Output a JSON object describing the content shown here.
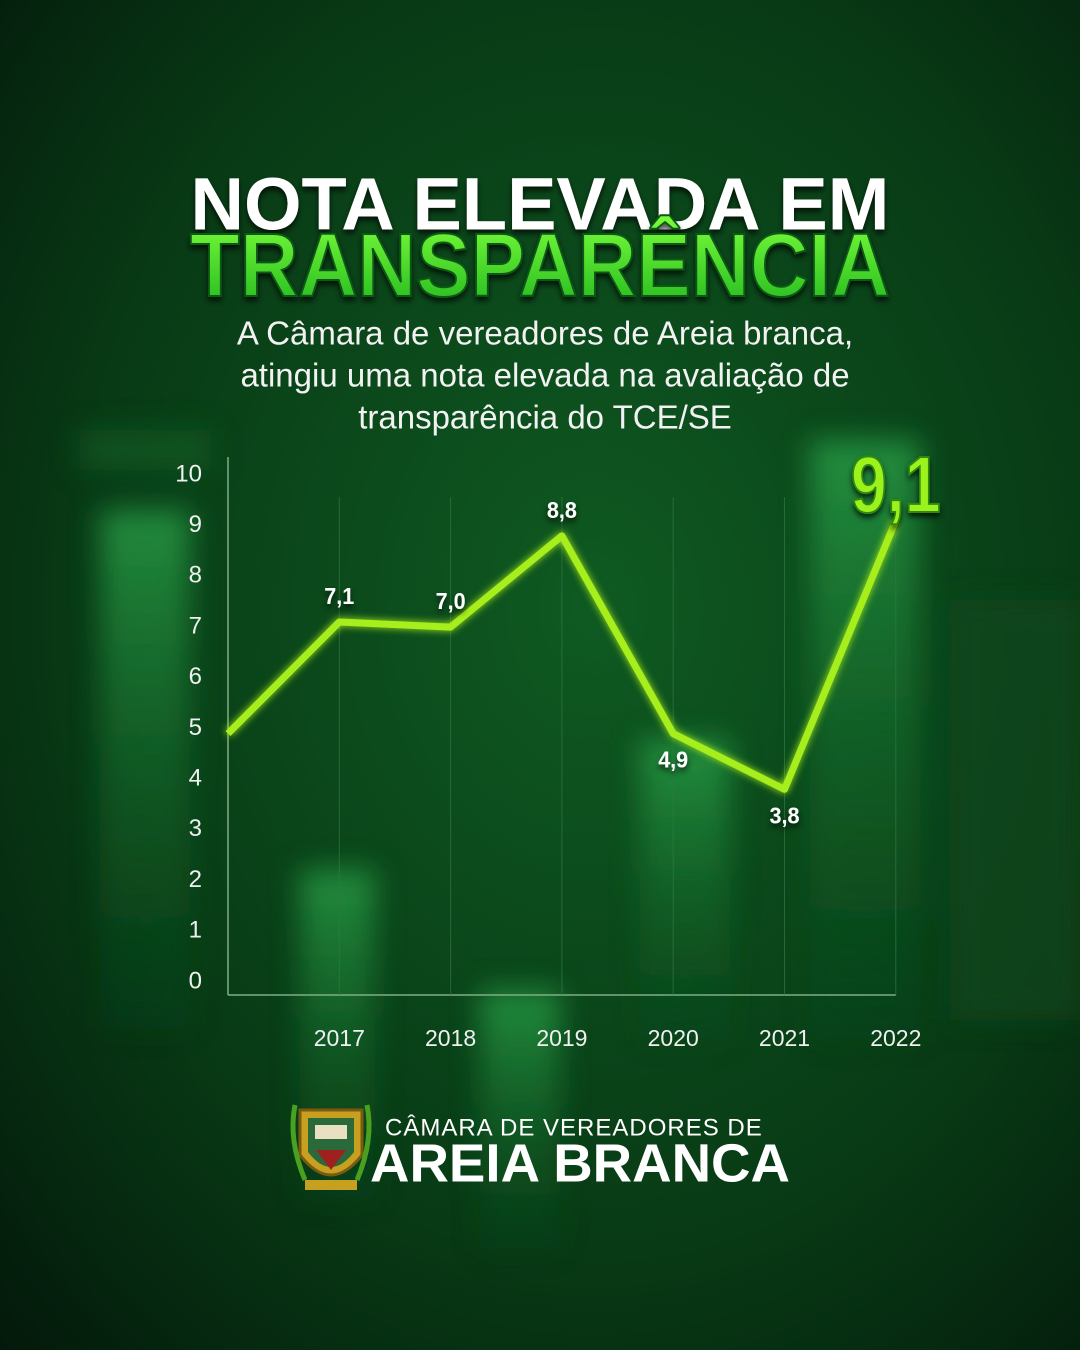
{
  "header": {
    "title_line1": "NOTA ELEVADA EM",
    "title_line2": "TRANSPARÊNCIA",
    "subtitle": [
      "A Câmara de vereadores de Areia branca,",
      "atingiu uma nota elevada na avaliação de",
      "transparência do TCE/SE"
    ]
  },
  "chart_data": {
    "type": "line",
    "categories": [
      null,
      "2017",
      "2018",
      "2019",
      "2020",
      "2021",
      "2022"
    ],
    "series": [
      {
        "color": "#a6ef1a",
        "values": [
          4.9,
          7.1,
          7.0,
          8.8,
          4.9,
          3.8,
          9.1
        ],
        "value_labels": [
          null,
          "7,1",
          "7,0",
          "8,8",
          "4,9",
          "3,8",
          "9,1"
        ]
      }
    ],
    "ylim": [
      0,
      10
    ],
    "yticks": [
      0,
      1,
      2,
      3,
      4,
      5,
      6,
      7,
      8,
      9,
      10
    ],
    "grid": true
  },
  "footer": {
    "line1": "CÂMARA DE VEREADORES DE",
    "line2": "AREIA BRANCA"
  }
}
